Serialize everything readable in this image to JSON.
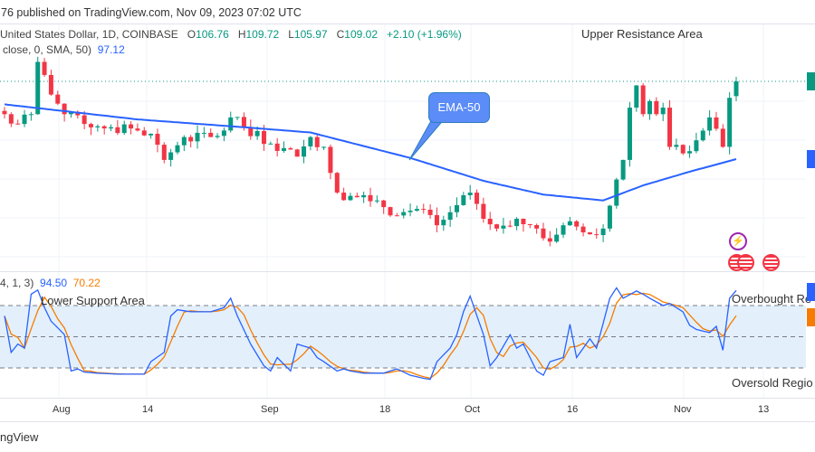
{
  "header": {
    "published": "76 published on TradingView.com, Nov 09, 2023 07:02 UTC"
  },
  "legend": {
    "symbol": "United States Dollar, 1D, COINBASE",
    "open_label": "O",
    "open": "106.76",
    "high_label": "H",
    "high": "109.72",
    "low_label": "L",
    "low": "105.97",
    "close_label": "C",
    "close": "109.02",
    "change": "+2.10 (+1.96%)",
    "ema_params": "close, 0, SMA, 50)",
    "ema_value": "97.12"
  },
  "stoch_legend": {
    "params": "4, 1, 3)",
    "k_value": "94.50",
    "d_value": "70.22"
  },
  "annotations": {
    "upper": "Upper Resistance Area",
    "lower": "Lower Support Area",
    "overbought": "Overbought Re",
    "oversold": "Oversold Regio",
    "callout": "EMA-50"
  },
  "time_axis": [
    "Aug",
    "14",
    "Sep",
    "18",
    "Oct",
    "16",
    "Nov",
    "13"
  ],
  "footer": {
    "brand": "ngView"
  },
  "icons": [
    "lightning-event-icon",
    "us-flag-event-icon",
    "us-flag-event-icon",
    "us-flag-event-icon"
  ],
  "colors": {
    "up": "#089981",
    "down": "#f23645",
    "ema": "#2962ff",
    "k": "#2962ff",
    "d": "#f57c00",
    "band": "#e3f0fc"
  },
  "chart_data": {
    "type": "candlestick",
    "last_close": 109.02,
    "ema_last": 97.12,
    "ema_period": 50,
    "close_keypoints": [
      [
        0,
        104
      ],
      [
        2,
        102.5
      ],
      [
        4,
        104
      ],
      [
        5,
        112
      ],
      [
        6,
        110
      ],
      [
        7,
        107
      ],
      [
        9,
        104
      ],
      [
        12,
        102.5
      ],
      [
        16,
        102
      ],
      [
        20,
        101.5
      ],
      [
        22,
        101
      ],
      [
        24,
        97
      ],
      [
        27,
        100.5
      ],
      [
        31,
        100.5
      ],
      [
        33,
        101.5
      ],
      [
        34,
        103.5
      ],
      [
        36,
        102
      ],
      [
        40,
        99.5
      ],
      [
        44,
        97.5
      ],
      [
        46,
        100.5
      ],
      [
        48,
        99
      ],
      [
        50,
        92
      ],
      [
        52,
        91.5
      ],
      [
        56,
        90.8
      ],
      [
        59,
        88.5
      ],
      [
        62,
        89.5
      ],
      [
        65,
        87
      ],
      [
        67,
        89
      ],
      [
        70,
        92
      ],
      [
        72,
        88
      ],
      [
        74,
        86.5
      ],
      [
        77,
        88
      ],
      [
        80,
        86.5
      ],
      [
        82,
        84.5
      ],
      [
        84,
        87
      ],
      [
        86,
        86.8
      ],
      [
        89,
        85.5
      ],
      [
        90,
        86.5
      ],
      [
        91,
        90
      ],
      [
        92,
        94
      ],
      [
        93,
        97
      ],
      [
        94,
        105
      ],
      [
        95,
        108.4
      ],
      [
        96,
        104
      ],
      [
        97,
        106
      ],
      [
        98,
        104
      ],
      [
        99,
        105
      ],
      [
        100,
        99
      ],
      [
        102,
        98
      ],
      [
        104,
        100
      ],
      [
        106,
        103.5
      ],
      [
        108,
        99
      ],
      [
        109,
        106.5
      ],
      [
        110,
        109.02
      ]
    ],
    "ema_keypoints": [
      [
        0,
        105.5
      ],
      [
        20,
        103.2
      ],
      [
        36,
        102
      ],
      [
        46,
        101.2
      ],
      [
        61,
        97.3
      ],
      [
        72,
        93.8
      ],
      [
        81,
        91.7
      ],
      [
        90,
        90.8
      ],
      [
        96,
        93.1
      ],
      [
        103,
        95.2
      ],
      [
        110,
        97.12
      ]
    ],
    "stochastic": {
      "levels": [
        80,
        50,
        20
      ],
      "k_last": 94.5,
      "d_last": 70.22,
      "k_keypoints": [
        [
          0,
          70
        ],
        [
          1,
          35
        ],
        [
          2,
          43
        ],
        [
          3,
          39
        ],
        [
          4,
          91
        ],
        [
          5,
          95
        ],
        [
          6,
          78
        ],
        [
          7,
          65
        ],
        [
          9,
          52
        ],
        [
          10,
          17
        ],
        [
          11,
          19
        ],
        [
          12,
          16
        ],
        [
          14,
          15
        ],
        [
          17,
          14
        ],
        [
          21,
          14
        ],
        [
          22,
          26
        ],
        [
          24,
          35
        ],
        [
          25,
          70
        ],
        [
          26,
          76
        ],
        [
          28,
          74
        ],
        [
          31,
          74
        ],
        [
          33,
          78
        ],
        [
          34,
          87
        ],
        [
          35,
          70
        ],
        [
          37,
          43
        ],
        [
          39,
          22
        ],
        [
          40,
          17
        ],
        [
          41,
          30
        ],
        [
          43,
          17
        ],
        [
          44,
          43
        ],
        [
          46,
          39
        ],
        [
          47,
          30
        ],
        [
          48,
          26
        ],
        [
          50,
          17
        ],
        [
          51,
          19
        ],
        [
          52,
          17
        ],
        [
          54,
          15
        ],
        [
          57,
          15
        ],
        [
          59,
          19
        ],
        [
          61,
          13
        ],
        [
          63,
          10
        ],
        [
          64,
          9
        ],
        [
          65,
          26
        ],
        [
          67,
          39
        ],
        [
          68,
          52
        ],
        [
          69,
          74
        ],
        [
          70,
          89
        ],
        [
          72,
          52
        ],
        [
          73,
          22
        ],
        [
          74,
          30
        ],
        [
          76,
          52
        ],
        [
          77,
          39
        ],
        [
          78,
          43
        ],
        [
          80,
          17
        ],
        [
          81,
          13
        ],
        [
          82,
          26
        ],
        [
          84,
          30
        ],
        [
          85,
          62
        ],
        [
          86,
          30
        ],
        [
          88,
          48
        ],
        [
          89,
          39
        ],
        [
          91,
          87
        ],
        [
          92,
          97
        ],
        [
          93,
          87
        ],
        [
          95,
          94
        ],
        [
          96,
          91
        ],
        [
          97,
          87
        ],
        [
          99,
          80
        ],
        [
          100,
          82
        ],
        [
          102,
          74
        ],
        [
          103,
          61
        ],
        [
          104,
          57
        ],
        [
          106,
          54
        ],
        [
          107,
          60
        ],
        [
          108,
          37
        ],
        [
          109,
          87
        ],
        [
          110,
          94.5
        ]
      ]
    }
  }
}
